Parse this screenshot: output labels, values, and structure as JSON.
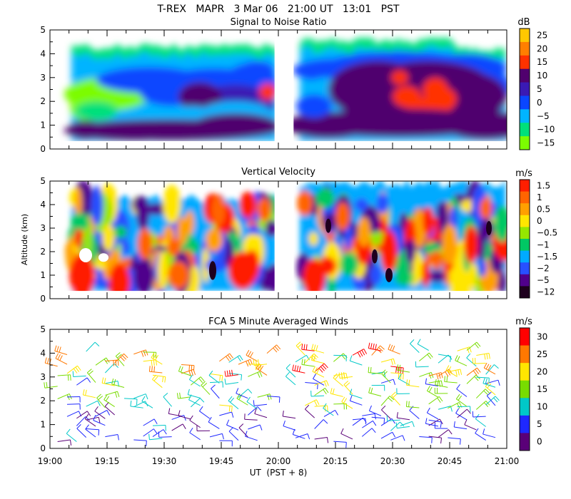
{
  "figure": {
    "title": "T-REX   MAPR   3 Mar 06   21:00 UT   13:01   PST",
    "xlabel": "UT  (PST + 8)",
    "ylabel": "Altitude (km)",
    "xticks": [
      "19:00",
      "19:15",
      "19:30",
      "19:45",
      "20:00",
      "20:15",
      "20:30",
      "20:45",
      "21:00"
    ],
    "yticks": [
      "0",
      "1",
      "2",
      "3",
      "4",
      "5"
    ]
  },
  "chart_data": [
    {
      "type": "heatmap",
      "title": "Signal to Noise Ratio",
      "xlabel": "UT  (PST + 8)",
      "ylabel": "Altitude (km)",
      "xlim": [
        "19:00",
        "21:00"
      ],
      "ylim": [
        0,
        5
      ],
      "data_gap": [
        "19:59",
        "20:04"
      ],
      "colorbar": {
        "unit": "dB",
        "labels": [
          "25",
          "20",
          "15",
          "10",
          "5",
          "0",
          "−5",
          "−10",
          "−15"
        ],
        "colors": [
          "#ffc800",
          "#ff7f00",
          "#ff3200",
          "#50006e",
          "#3a1ab4",
          "#0a46ff",
          "#00b4ff",
          "#00e07a",
          "#7cfc00"
        ]
      }
    },
    {
      "type": "heatmap",
      "title": "Vertical Velocity",
      "xlabel": "UT  (PST + 8)",
      "ylabel": "Altitude (km)",
      "xlim": [
        "19:00",
        "21:00"
      ],
      "ylim": [
        0,
        5
      ],
      "data_gap": [
        "19:59",
        "20:04"
      ],
      "colorbar": {
        "unit": "m/s",
        "labels": [
          "1.5",
          "1",
          "0.5",
          "0",
          "−0.5",
          "−1",
          "−1.5",
          "−2",
          "−5",
          "−12"
        ],
        "colors": [
          "#ff1e00",
          "#ff6400",
          "#ffa000",
          "#ffe600",
          "#96e600",
          "#00c864",
          "#00aaff",
          "#2850ff",
          "#50008c",
          "#1e001e"
        ]
      }
    },
    {
      "type": "scatter",
      "title": "FCA 5 Minute Averaged Winds",
      "xlabel": "UT  (PST + 8)",
      "ylabel": "Altitude (km)",
      "xlim": [
        "19:00",
        "21:00"
      ],
      "ylim": [
        0,
        5
      ],
      "marker": "wind barb",
      "colorbar": {
        "unit": "m/s",
        "labels": [
          "30",
          "25",
          "20",
          "15",
          "10",
          "5",
          "0"
        ],
        "colors": [
          "#ff0000",
          "#ff7800",
          "#ffe600",
          "#78dc00",
          "#00c8c8",
          "#1e28ff",
          "#5a0078"
        ]
      }
    }
  ]
}
